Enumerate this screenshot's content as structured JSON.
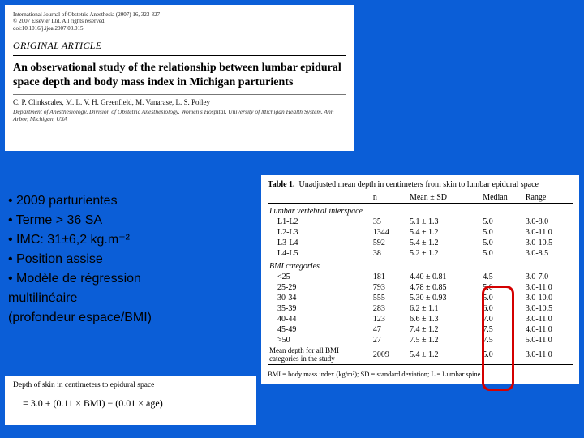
{
  "slide_background": "#0b5ed7",
  "header": {
    "journal_line1": "International Journal of Obstetric Anesthesia (2007) 16, 323-327",
    "journal_line2": "© 2007 Elsevier Ltd. All rights reserved.",
    "journal_line3": "doi:10.1016/j.ijoa.2007.03.015",
    "section": "ORIGINAL ARTICLE",
    "title": "An observational study of the relationship between lumbar epidural space depth and body mass index in Michigan parturients",
    "authors": "C. P. Clinkscales, M. L. V. H. Greenfield, M. Vanarase, L. S. Polley",
    "affiliation": "Department of Anesthesiology, Division of Obstetric Anesthesiology, Women's Hospital, University of Michigan Health System, Ann Arbor, Michigan, USA"
  },
  "bullets": {
    "b1": "2009 parturientes",
    "b2": "Terme > 36 SA",
    "b3": "IMC: 31±6,2 kg.m⁻²",
    "b4": "Position assise",
    "b5": "Modèle de régression",
    "trail1": "multilinéaire",
    "trail2": "(profondeur espace/BMI)"
  },
  "table1": {
    "caption_lead": "Table 1.",
    "caption_rest": "Unadjusted mean depth in centimeters from skin to lumbar epidural space",
    "col_n": "n",
    "col_mean": "Mean ± SD",
    "col_median": "Median",
    "col_range": "Range",
    "group1": "Lumbar vertebral interspace",
    "rows_interspace": [
      {
        "label": "L1-L2",
        "n": "35",
        "mean": "5.1 ± 1.3",
        "median": "5.0",
        "range": "3.0-8.0"
      },
      {
        "label": "L2-L3",
        "n": "1344",
        "mean": "5.4 ± 1.2",
        "median": "5.0",
        "range": "3.0-11.0"
      },
      {
        "label": "L3-L4",
        "n": "592",
        "mean": "5.4 ± 1.2",
        "median": "5.0",
        "range": "3.0-10.5"
      },
      {
        "label": "L4-L5",
        "n": "38",
        "mean": "5.2 ± 1.2",
        "median": "5.0",
        "range": "3.0-8.5"
      }
    ],
    "group2": "BMI categories",
    "rows_bmi": [
      {
        "label": "<25",
        "n": "181",
        "mean": "4.40 ± 0.81",
        "median": "4.5",
        "range": "3.0-7.0"
      },
      {
        "label": "25-29",
        "n": "793",
        "mean": "4.78 ± 0.85",
        "median": "5.0",
        "range": "3.0-11.0"
      },
      {
        "label": "30-34",
        "n": "555",
        "mean": "5.30 ± 0.93",
        "median": "5.0",
        "range": "3.0-10.0"
      },
      {
        "label": "35-39",
        "n": "283",
        "mean": "6.2 ± 1.1",
        "median": "6.0",
        "range": "3.0-10.5"
      },
      {
        "label": "40-44",
        "n": "123",
        "mean": "6.6 ± 1.3",
        "median": "7.0",
        "range": "3.0-11.0"
      },
      {
        "label": "45-49",
        "n": "47",
        "mean": "7.4 ± 1.2",
        "median": "7.5",
        "range": "4.0-11.0"
      },
      {
        "label": ">50",
        "n": "27",
        "mean": "7.5 ± 1.2",
        "median": "7.5",
        "range": "5.0-11.0"
      }
    ],
    "summary": {
      "label": "Mean depth for all BMI categories in the study",
      "n": "2009",
      "mean": "5.4 ± 1.2",
      "median": "5.0",
      "range": "3.0-11.0"
    },
    "footnote": "BMI = body mass index (kg/m²); SD = standard deviation; L = Lumbar spine."
  },
  "formula": {
    "label": "Depth of skin in centimeters to epidural space",
    "eq": "= 3.0 + (0.11 × BMI) − (0.01 × age)"
  },
  "highlight_ring_color": "#d40000"
}
